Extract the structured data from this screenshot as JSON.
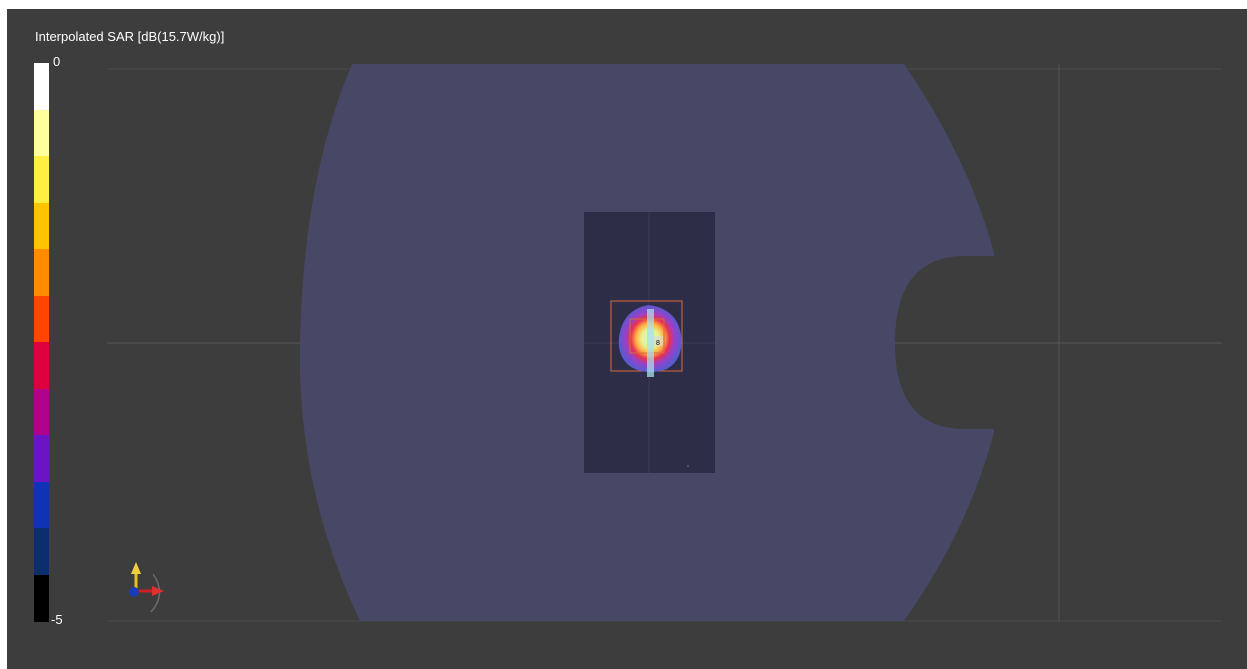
{
  "viewer": {
    "title": "Interpolated SAR [dB(15.7W/kg)]",
    "colorbar": {
      "max_label": "0",
      "min_label": "-5",
      "colors": [
        "#ffffff",
        "#ffffa0",
        "#ffee44",
        "#ffc400",
        "#ff8c00",
        "#ff4500",
        "#e00040",
        "#b0008c",
        "#6a14c4",
        "#1032b4",
        "#0a2e6e",
        "#000000"
      ]
    },
    "probe_marker_label": "8",
    "colors": {
      "background": "#3d3d3d",
      "phantom": "#474766",
      "dut": "#2d2d48",
      "scan_box": "#d66b3a"
    },
    "axes_triad": {
      "y_axis": "yellow",
      "x_axis": "red",
      "z_axis": "blue"
    }
  }
}
